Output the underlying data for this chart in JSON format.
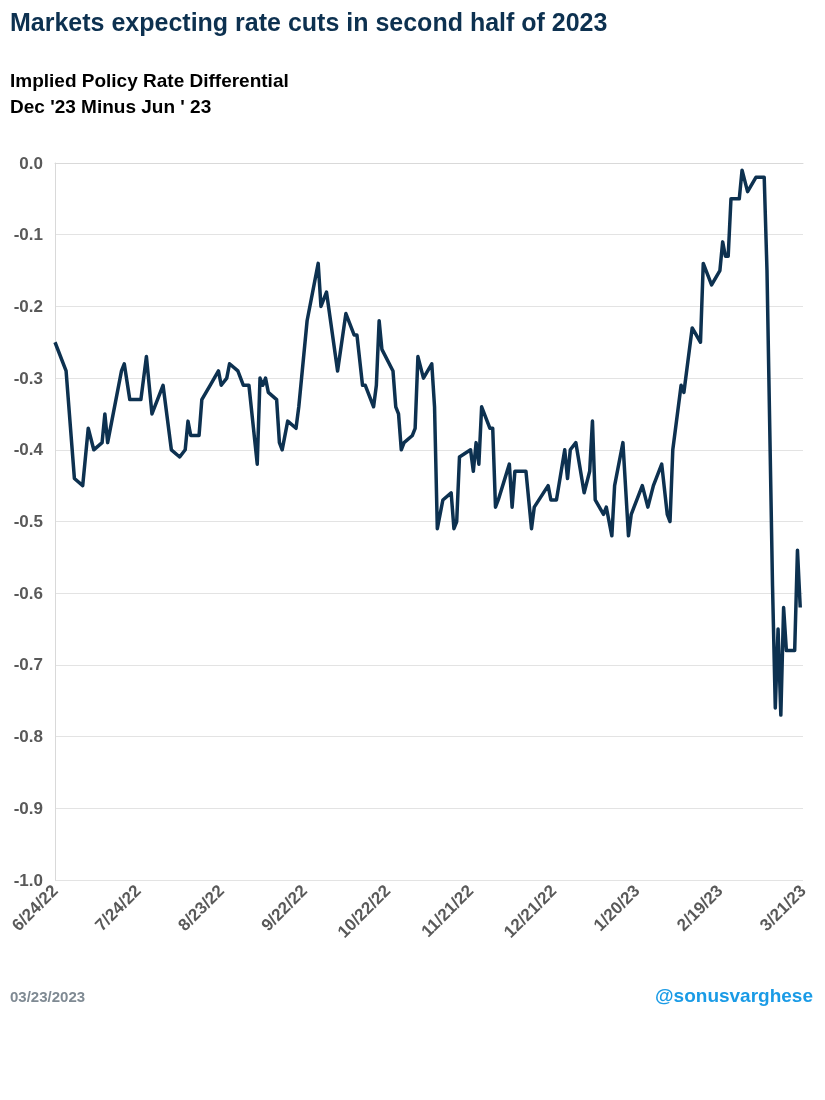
{
  "chart_data": {
    "type": "line",
    "title": "Markets expecting rate cuts in second half of 2023",
    "subtitle": "Implied Policy Rate Differential\nDec '23 Minus Jun ' 23",
    "annotations": [
      "03/23/2023",
      "@sonusvarghese"
    ],
    "x": [
      "2022-06-24",
      "2022-06-28",
      "2022-07-01",
      "2022-07-04",
      "2022-07-06",
      "2022-07-08",
      "2022-07-11",
      "2022-07-12",
      "2022-07-13",
      "2022-07-18",
      "2022-07-19",
      "2022-07-21",
      "2022-07-25",
      "2022-07-27",
      "2022-07-29",
      "2022-08-02",
      "2022-08-05",
      "2022-08-08",
      "2022-08-10",
      "2022-08-11",
      "2022-08-12",
      "2022-08-15",
      "2022-08-16",
      "2022-08-19",
      "2022-08-22",
      "2022-08-23",
      "2022-08-25",
      "2022-08-26",
      "2022-08-29",
      "2022-08-31",
      "2022-09-02",
      "2022-09-05",
      "2022-09-06",
      "2022-09-07",
      "2022-09-08",
      "2022-09-09",
      "2022-09-12",
      "2022-09-13",
      "2022-09-14",
      "2022-09-16",
      "2022-09-19",
      "2022-09-20",
      "2022-09-23",
      "2022-09-27",
      "2022-09-28",
      "2022-09-30",
      "2022-10-04",
      "2022-10-07",
      "2022-10-10",
      "2022-10-11",
      "2022-10-13",
      "2022-10-14",
      "2022-10-17",
      "2022-10-18",
      "2022-10-19",
      "2022-10-20",
      "2022-10-24",
      "2022-10-25",
      "2022-10-26",
      "2022-10-27",
      "2022-10-28",
      "2022-10-31",
      "2022-11-01",
      "2022-11-02",
      "2022-11-04",
      "2022-11-07",
      "2022-11-08",
      "2022-11-09",
      "2022-11-11",
      "2022-11-14",
      "2022-11-15",
      "2022-11-16",
      "2022-11-17",
      "2022-11-21",
      "2022-11-22",
      "2022-11-23",
      "2022-11-24",
      "2022-11-25",
      "2022-11-28",
      "2022-11-29",
      "2022-11-30",
      "2022-12-01",
      "2022-12-05",
      "2022-12-06",
      "2022-12-07",
      "2022-12-11",
      "2022-12-13",
      "2022-12-14",
      "2022-12-19",
      "2022-12-20",
      "2022-12-22",
      "2022-12-25",
      "2022-12-26",
      "2022-12-27",
      "2022-12-29",
      "2023-01-01",
      "2023-01-03",
      "2023-01-04",
      "2023-01-05",
      "2023-01-08",
      "2023-01-09",
      "2023-01-11",
      "2023-01-12",
      "2023-01-15",
      "2023-01-17",
      "2023-01-18",
      "2023-01-19",
      "2023-01-22",
      "2023-01-24",
      "2023-01-26",
      "2023-01-29",
      "2023-01-31",
      "2023-02-01",
      "2023-02-02",
      "2023-02-05",
      "2023-02-06",
      "2023-02-09",
      "2023-02-12",
      "2023-02-13",
      "2023-02-16",
      "2023-02-19",
      "2023-02-20",
      "2023-02-21",
      "2023-02-22",
      "2023-02-23",
      "2023-02-26",
      "2023-02-27",
      "2023-03-01",
      "2023-03-04",
      "2023-03-07",
      "2023-03-08",
      "2023-03-10",
      "2023-03-11",
      "2023-03-12",
      "2023-03-13",
      "2023-03-14",
      "2023-03-15",
      "2023-03-18",
      "2023-03-19",
      "2023-03-20"
    ],
    "series": [
      {
        "color": "#0d3150",
        "values": [
          -0.25,
          -0.29,
          -0.44,
          -0.45,
          -0.37,
          -0.4,
          -0.39,
          -0.35,
          -0.39,
          -0.29,
          -0.28,
          -0.33,
          -0.33,
          -0.27,
          -0.35,
          -0.31,
          -0.4,
          -0.41,
          -0.4,
          -0.36,
          -0.38,
          -0.38,
          -0.33,
          -0.31,
          -0.29,
          -0.31,
          -0.3,
          -0.28,
          -0.29,
          -0.31,
          -0.31,
          -0.42,
          -0.3,
          -0.31,
          -0.3,
          -0.32,
          -0.33,
          -0.39,
          -0.4,
          -0.36,
          -0.37,
          -0.34,
          -0.22,
          -0.14,
          -0.2,
          -0.18,
          -0.29,
          -0.21,
          -0.24,
          -0.24,
          -0.31,
          -0.31,
          -0.34,
          -0.31,
          -0.22,
          -0.26,
          -0.29,
          -0.34,
          -0.35,
          -0.4,
          -0.39,
          -0.38,
          -0.37,
          -0.27,
          -0.3,
          -0.28,
          -0.34,
          -0.51,
          -0.47,
          -0.46,
          -0.51,
          -0.5,
          -0.41,
          -0.4,
          -0.43,
          -0.39,
          -0.42,
          -0.34,
          -0.37,
          -0.37,
          -0.48,
          -0.47,
          -0.42,
          -0.48,
          -0.43,
          -0.43,
          -0.51,
          -0.48,
          -0.45,
          -0.47,
          -0.47,
          -0.4,
          -0.44,
          -0.4,
          -0.39,
          -0.46,
          -0.43,
          -0.36,
          -0.47,
          -0.49,
          -0.48,
          -0.52,
          -0.45,
          -0.39,
          -0.52,
          -0.49,
          -0.48,
          -0.45,
          -0.48,
          -0.45,
          -0.42,
          -0.49,
          -0.5,
          -0.4,
          -0.31,
          -0.32,
          -0.23,
          -0.25,
          -0.14,
          -0.17,
          -0.15,
          -0.11,
          -0.13,
          -0.13,
          -0.05,
          -0.05,
          -0.01,
          -0.04,
          -0.02,
          -0.02,
          -0.15,
          -0.59,
          -0.76,
          -0.65,
          -0.77,
          -0.62,
          -0.68,
          -0.68,
          -0.54,
          -0.62
        ]
      }
    ],
    "xlim": [
      "2022-06-24",
      "2023-03-21"
    ],
    "xticks": [
      {
        "value": "2022-06-24",
        "label": "6/24/22"
      },
      {
        "value": "2022-07-24",
        "label": "7/24/22"
      },
      {
        "value": "2022-08-23",
        "label": "8/23/22"
      },
      {
        "value": "2022-09-22",
        "label": "9/22/22"
      },
      {
        "value": "2022-10-22",
        "label": "10/22/22"
      },
      {
        "value": "2022-11-21",
        "label": "11/21/22"
      },
      {
        "value": "2022-12-21",
        "label": "12/21/22"
      },
      {
        "value": "2023-01-20",
        "label": "1/20/23"
      },
      {
        "value": "2023-02-19",
        "label": "2/19/23"
      },
      {
        "value": "2023-03-21",
        "label": "3/21/23"
      }
    ],
    "ylim": [
      -1,
      0
    ],
    "yticks": [
      {
        "value": 0,
        "label": "0.0"
      },
      -0.1,
      -0.2,
      -0.3,
      -0.4,
      -0.5,
      -0.6,
      -0.7,
      -0.8,
      -0.9,
      {
        "value": -1,
        "label": "-1.0"
      }
    ],
    "grid": "y",
    "line_style": "solid"
  }
}
